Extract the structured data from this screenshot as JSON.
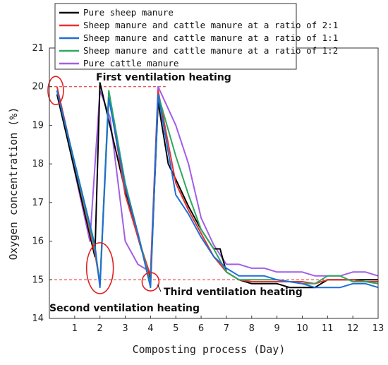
{
  "chart_data": {
    "type": "line",
    "xlabel": "Composting process (Day)",
    "ylabel": "Oxygen concentration (%)",
    "xlim": [
      0,
      13
    ],
    "ylim": [
      14,
      21
    ],
    "xticks": [
      "1",
      "2",
      "3",
      "4",
      "5",
      "6",
      "7",
      "8",
      "9",
      "10",
      "11",
      "12",
      "13"
    ],
    "yticks": [
      "14",
      "15",
      "16",
      "17",
      "18",
      "19",
      "20",
      "21"
    ],
    "grid": false,
    "legend_position": "top",
    "reference_lines": [
      {
        "y": 20,
        "color": "#e02020",
        "style": "dashed"
      },
      {
        "y": 15,
        "color": "#e02020",
        "style": "dashed"
      }
    ],
    "annotations": [
      {
        "text": "First ventilation heating",
        "x": 0.25,
        "y": 19.9
      },
      {
        "text": "Second ventilation heating",
        "x": 2.0,
        "y": 15.3
      },
      {
        "text": "Third ventilation heating",
        "x": 4.0,
        "y": 14.95
      }
    ],
    "series": [
      {
        "name": "Pure sheep manure",
        "color": "#000000",
        "x": [
          0.3,
          1.8,
          2.0,
          2.5,
          3.0,
          3.5,
          4.0,
          4.3,
          4.7,
          5.0,
          5.5,
          6.0,
          6.5,
          6.75,
          7.0,
          7.5,
          8.0,
          8.5,
          9.0,
          9.5,
          10.0,
          10.5,
          11.0,
          11.5,
          12.0,
          12.5,
          13.0
        ],
        "y": [
          19.8,
          15.6,
          20.1,
          18.7,
          17.3,
          16.1,
          15.0,
          19.6,
          18.0,
          17.6,
          16.9,
          16.3,
          15.8,
          15.8,
          15.2,
          15.0,
          14.9,
          14.9,
          14.9,
          14.8,
          14.8,
          14.8,
          15.0,
          15.0,
          15.0,
          15.0,
          15.0
        ]
      },
      {
        "name": "Sheep manure and cattle manure at a ratio of 2:1",
        "color": "#e8322f",
        "x": [
          0.3,
          1.8,
          2.0,
          2.35,
          3.0,
          3.5,
          4.0,
          4.3,
          5.0,
          5.5,
          6.0,
          6.5,
          7.0,
          7.5,
          8.0,
          8.5,
          9.0,
          9.5,
          10.0,
          10.5,
          11.0,
          11.5,
          12.0,
          12.5,
          13.0
        ],
        "y": [
          20.0,
          15.7,
          14.9,
          19.8,
          17.2,
          16.1,
          15.1,
          19.9,
          17.5,
          16.8,
          16.2,
          15.6,
          15.2,
          15.0,
          14.95,
          14.95,
          14.95,
          14.95,
          14.95,
          14.9,
          15.0,
          15.0,
          15.0,
          14.95,
          14.95
        ]
      },
      {
        "name": "Sheep manure and cattle manure at a ratio of 1:1",
        "color": "#1f6fd6",
        "x": [
          0.3,
          1.8,
          2.0,
          2.35,
          3.0,
          3.5,
          4.0,
          4.3,
          5.0,
          5.5,
          6.0,
          6.5,
          7.0,
          7.5,
          8.0,
          8.5,
          9.0,
          9.5,
          10.0,
          10.5,
          11.0,
          11.5,
          12.0,
          12.5,
          13.0
        ],
        "y": [
          19.9,
          15.9,
          14.8,
          19.7,
          17.4,
          16.2,
          14.8,
          19.8,
          17.2,
          16.7,
          16.1,
          15.6,
          15.3,
          15.1,
          15.1,
          15.1,
          15.0,
          14.95,
          14.9,
          14.8,
          14.8,
          14.8,
          14.9,
          14.9,
          14.8
        ]
      },
      {
        "name": "Sheep manure and cattle manure at a ratio of 1:2",
        "color": "#2fa860",
        "x": [
          0.3,
          1.8,
          2.0,
          2.35,
          3.0,
          3.5,
          4.0,
          4.3,
          5.0,
          5.5,
          6.0,
          6.5,
          7.0,
          7.5,
          8.0,
          8.5,
          9.0,
          9.5,
          10.0,
          10.5,
          11.0,
          11.5,
          12.0,
          12.5,
          13.0
        ],
        "y": [
          19.9,
          15.8,
          14.9,
          19.9,
          17.5,
          16.2,
          14.9,
          19.8,
          18.2,
          17.2,
          16.3,
          15.8,
          15.2,
          15.0,
          15.0,
          15.0,
          15.0,
          14.95,
          14.9,
          14.9,
          15.1,
          15.1,
          14.95,
          14.95,
          14.9
        ]
      },
      {
        "name": "Pure cattle manure",
        "color": "#a15ee8",
        "x": [
          0.3,
          1.6,
          2.0,
          2.4,
          3.0,
          3.5,
          4.0,
          4.3,
          5.0,
          5.5,
          6.0,
          6.5,
          7.0,
          7.5,
          8.0,
          8.5,
          9.0,
          9.5,
          10.0,
          10.5,
          11.0,
          11.5,
          12.0,
          12.5,
          13.0
        ],
        "y": [
          19.9,
          16.0,
          19.9,
          19.2,
          16.0,
          15.4,
          15.2,
          20.0,
          19.0,
          18.0,
          16.6,
          15.9,
          15.4,
          15.4,
          15.3,
          15.3,
          15.2,
          15.2,
          15.2,
          15.1,
          15.1,
          15.1,
          15.2,
          15.2,
          15.1
        ]
      }
    ]
  }
}
